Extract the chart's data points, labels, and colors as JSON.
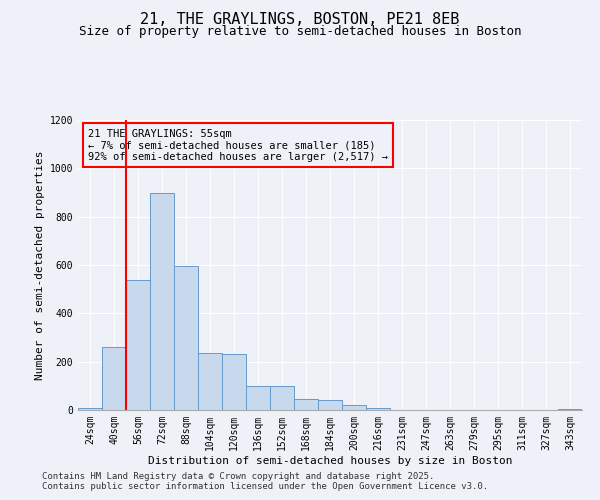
{
  "title": "21, THE GRAYLINGS, BOSTON, PE21 8EB",
  "subtitle": "Size of property relative to semi-detached houses in Boston",
  "xlabel": "Distribution of semi-detached houses by size in Boston",
  "ylabel": "Number of semi-detached properties",
  "categories": [
    "24sqm",
    "40sqm",
    "56sqm",
    "72sqm",
    "88sqm",
    "104sqm",
    "120sqm",
    "136sqm",
    "152sqm",
    "168sqm",
    "184sqm",
    "200sqm",
    "216sqm",
    "231sqm",
    "247sqm",
    "263sqm",
    "279sqm",
    "295sqm",
    "311sqm",
    "327sqm",
    "343sqm"
  ],
  "values": [
    10,
    260,
    540,
    900,
    595,
    235,
    230,
    100,
    100,
    45,
    40,
    20,
    10,
    0,
    0,
    0,
    0,
    0,
    0,
    0,
    5
  ],
  "bar_color": "#c9d9ed",
  "bar_edge_color": "#6699cc",
  "vline_color": "red",
  "vline_x": 1.5,
  "annotation_title": "21 THE GRAYLINGS: 55sqm",
  "annotation_line1": "← 7% of semi-detached houses are smaller (185)",
  "annotation_line2": "92% of semi-detached houses are larger (2,517) →",
  "annotation_box_color": "red",
  "ylim": [
    0,
    1200
  ],
  "yticks": [
    0,
    200,
    400,
    600,
    800,
    1000,
    1200
  ],
  "footnote1": "Contains HM Land Registry data © Crown copyright and database right 2025.",
  "footnote2": "Contains public sector information licensed under the Open Government Licence v3.0.",
  "background_color": "#eef2f8",
  "grid_color": "#ffffff",
  "title_fontsize": 11,
  "subtitle_fontsize": 9,
  "axis_label_fontsize": 8,
  "tick_fontsize": 7,
  "annotation_fontsize": 7.5,
  "footnote_fontsize": 6.5
}
